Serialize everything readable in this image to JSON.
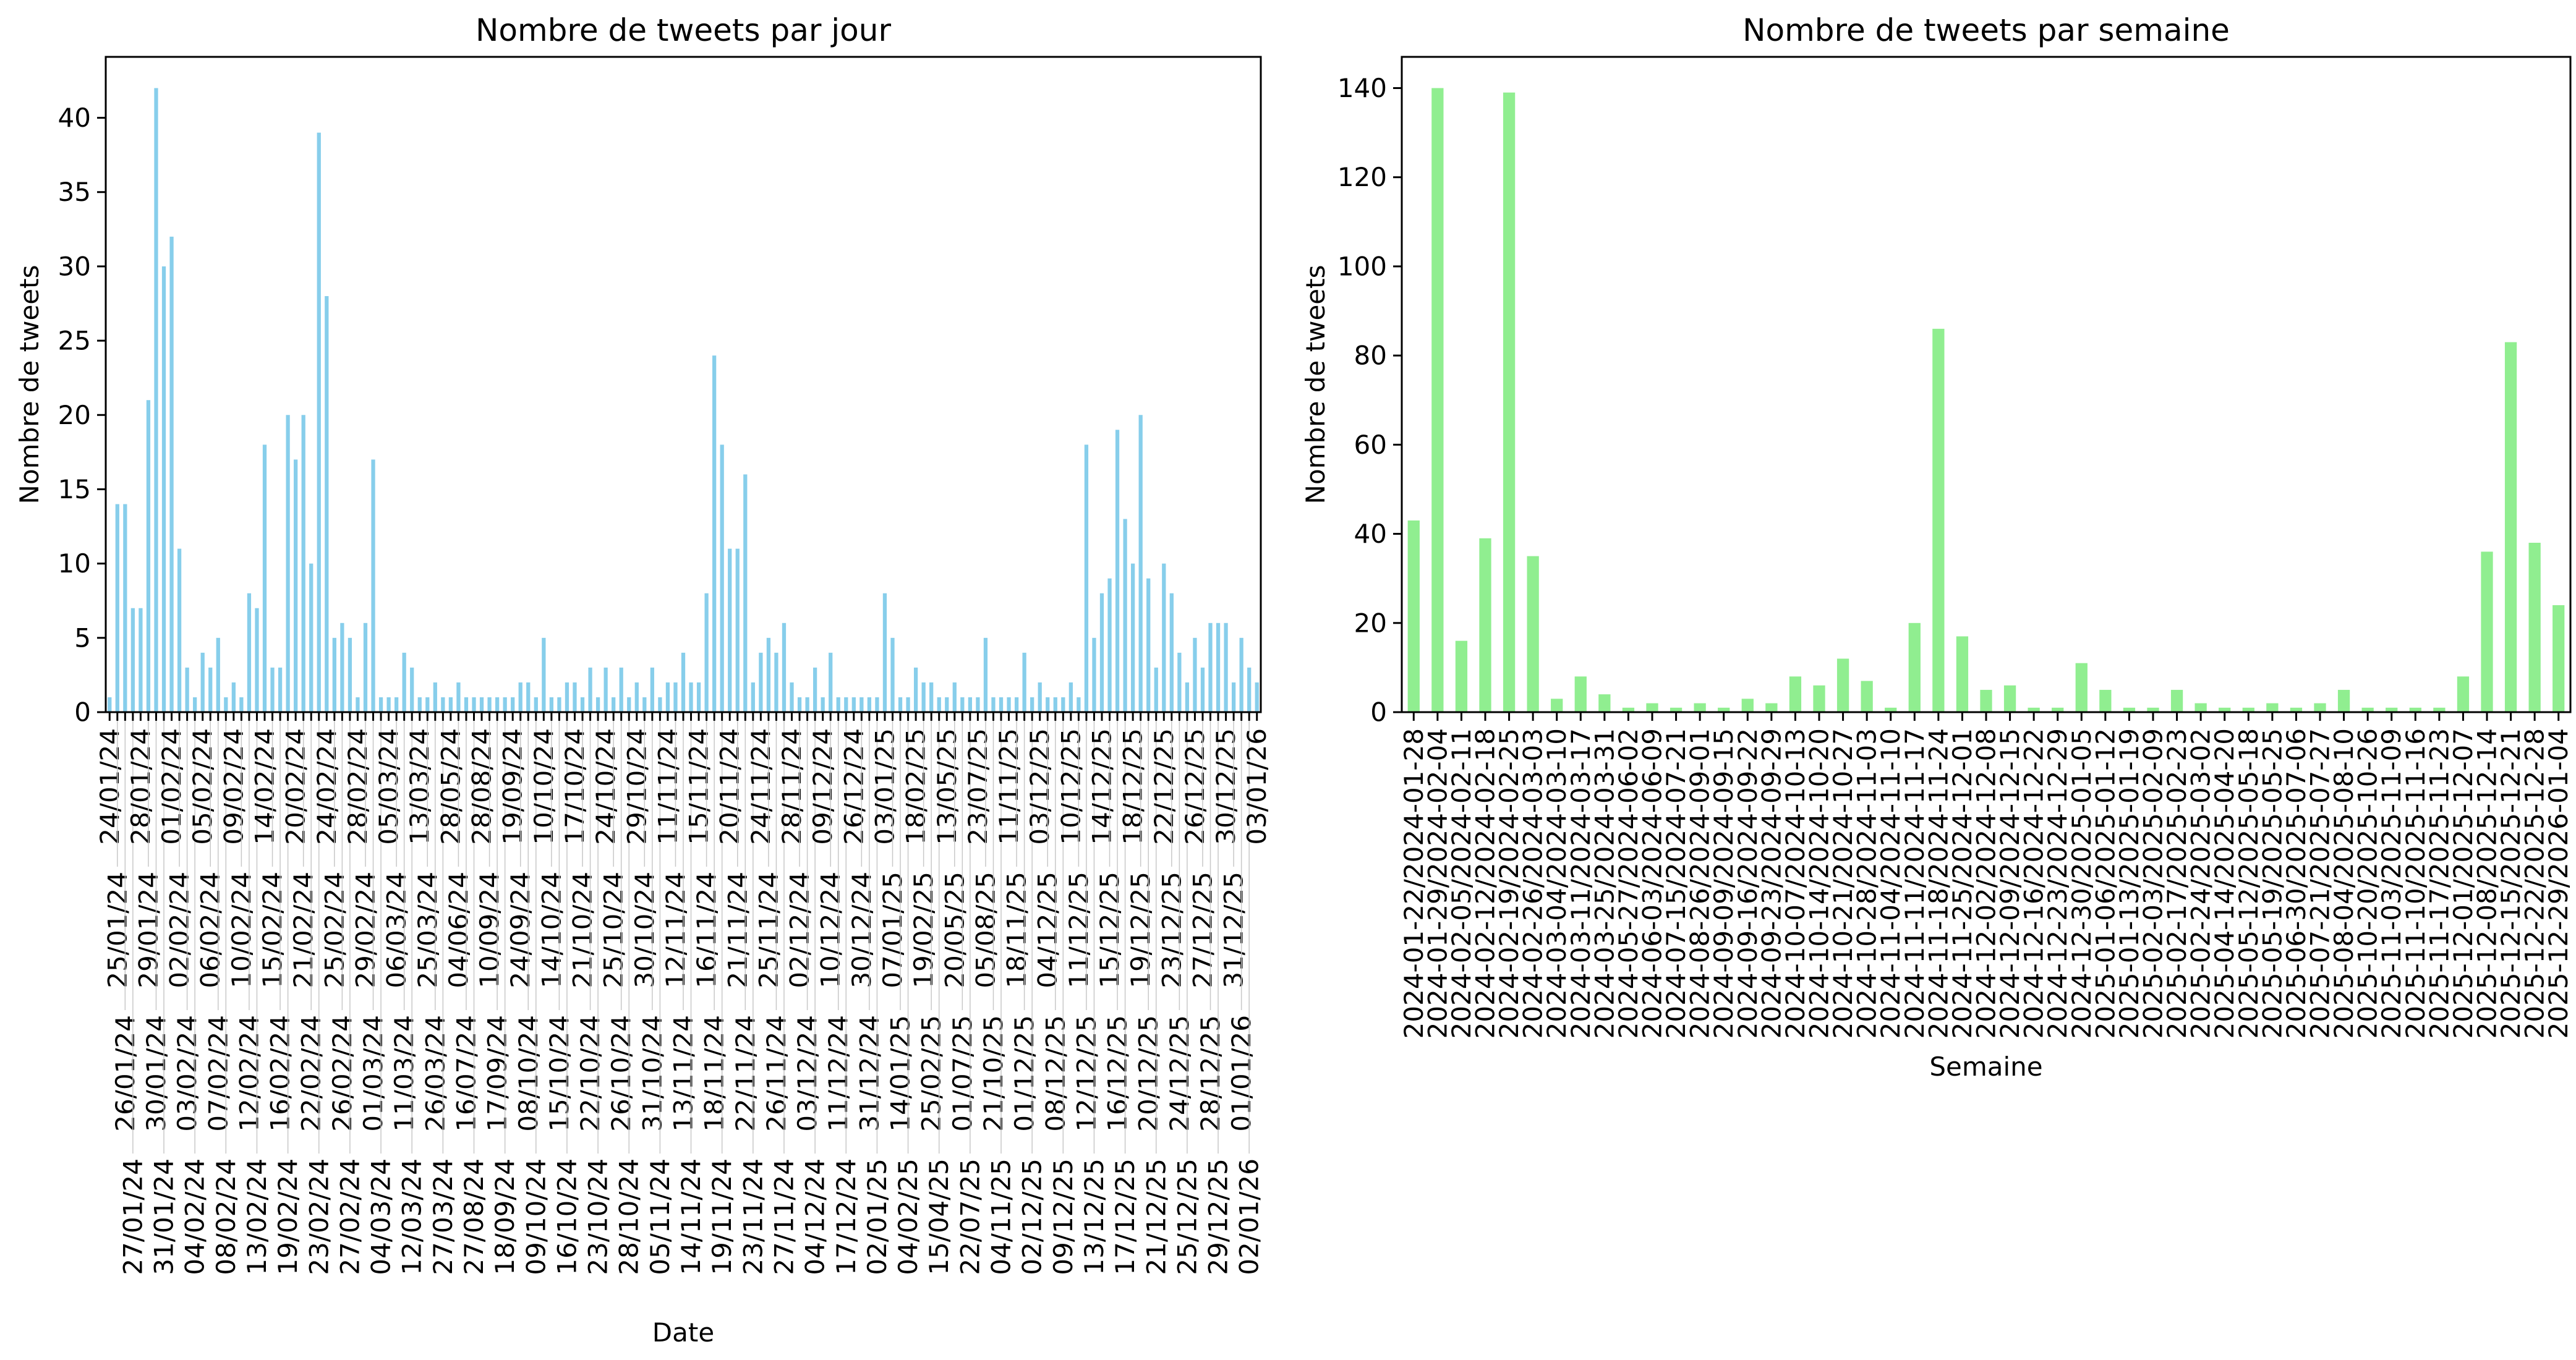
{
  "colors": {
    "daily_bar": "#87ceeb",
    "weekly_bar": "#90ee90",
    "axis": "#000000"
  },
  "chart_data": [
    {
      "type": "bar",
      "title": "Nombre de tweets par jour",
      "xlabel": "Date",
      "ylabel": "Nombre de tweets",
      "ylim": [
        0,
        44.1
      ],
      "yticks": [
        0,
        5,
        10,
        15,
        20,
        25,
        30,
        35,
        40
      ],
      "grid": false,
      "categories": [
        "24/01/24",
        "25/01/24",
        "26/01/24",
        "27/01/24",
        "28/01/24",
        "29/01/24",
        "30/01/24",
        "31/01/24",
        "01/02/24",
        "02/02/24",
        "03/02/24",
        "04/02/24",
        "05/02/24",
        "06/02/24",
        "07/02/24",
        "08/02/24",
        "09/02/24",
        "10/02/24",
        "12/02/24",
        "13/02/24",
        "14/02/24",
        "15/02/24",
        "16/02/24",
        "19/02/24",
        "20/02/24",
        "21/02/24",
        "22/02/24",
        "23/02/24",
        "24/02/24",
        "25/02/24",
        "26/02/24",
        "27/02/24",
        "28/02/24",
        "29/02/24",
        "01/03/24",
        "04/03/24",
        "05/03/24",
        "06/03/24",
        "11/03/24",
        "12/03/24",
        "13/03/24",
        "25/03/24",
        "26/03/24",
        "27/03/24",
        "28/05/24",
        "04/06/24",
        "16/07/24",
        "27/08/24",
        "28/08/24",
        "10/09/24",
        "17/09/24",
        "18/09/24",
        "19/09/24",
        "24/09/24",
        "08/10/24",
        "09/10/24",
        "10/10/24",
        "14/10/24",
        "15/10/24",
        "16/10/24",
        "17/10/24",
        "21/10/24",
        "22/10/24",
        "23/10/24",
        "24/10/24",
        "25/10/24",
        "26/10/24",
        "28/10/24",
        "29/10/24",
        "30/10/24",
        "31/10/24",
        "05/11/24",
        "11/11/24",
        "12/11/24",
        "13/11/24",
        "14/11/24",
        "15/11/24",
        "16/11/24",
        "18/11/24",
        "19/11/24",
        "20/11/24",
        "21/11/24",
        "22/11/24",
        "23/11/24",
        "24/11/24",
        "25/11/24",
        "26/11/24",
        "27/11/24",
        "28/11/24",
        "02/12/24",
        "03/12/24",
        "04/12/24",
        "09/12/24",
        "10/12/24",
        "11/12/24",
        "17/12/24",
        "26/12/24",
        "30/12/24",
        "31/12/24",
        "02/01/25",
        "03/01/25",
        "07/01/25",
        "14/01/25",
        "04/02/25",
        "18/02/25",
        "19/02/25",
        "25/02/25",
        "15/04/25",
        "13/05/25",
        "20/05/25",
        "01/07/25",
        "22/07/25",
        "23/07/25",
        "05/08/25",
        "21/10/25",
        "04/11/25",
        "11/11/25",
        "18/11/25",
        "01/12/25",
        "02/12/25",
        "03/12/25",
        "04/12/25",
        "08/12/25",
        "09/12/25",
        "10/12/25",
        "11/12/25",
        "12/12/25",
        "13/12/25",
        "14/12/25",
        "15/12/25",
        "16/12/25",
        "17/12/25",
        "18/12/25",
        "19/12/25",
        "20/12/25",
        "21/12/25",
        "22/12/25",
        "23/12/25",
        "24/12/25",
        "25/12/25",
        "26/12/25",
        "27/12/25",
        "28/12/25",
        "29/12/25",
        "30/12/25",
        "31/12/25",
        "01/01/26",
        "02/01/26",
        "03/01/26"
      ],
      "values": [
        1,
        14,
        14,
        7,
        7,
        21,
        42,
        30,
        32,
        11,
        3,
        1,
        4,
        3,
        5,
        1,
        2,
        1,
        8,
        7,
        18,
        3,
        3,
        20,
        17,
        20,
        10,
        39,
        28,
        5,
        6,
        5,
        1,
        6,
        17,
        1,
        1,
        1,
        4,
        3,
        1,
        1,
        2,
        1,
        1,
        2,
        1,
        1,
        1,
        1,
        1,
        1,
        1,
        2,
        2,
        1,
        5,
        1,
        1,
        2,
        2,
        1,
        3,
        1,
        3,
        1,
        3,
        1,
        2,
        1,
        3,
        1,
        2,
        2,
        4,
        2,
        2,
        8,
        24,
        18,
        11,
        11,
        16,
        2,
        4,
        5,
        4,
        6,
        2,
        1,
        1,
        3,
        1,
        4,
        1,
        1,
        1,
        1,
        1,
        1,
        8,
        5,
        1,
        1,
        3,
        2,
        2,
        1,
        1,
        2,
        1,
        1,
        1,
        5,
        1,
        1,
        1,
        1,
        4,
        1,
        2,
        1,
        1,
        1,
        2,
        1,
        18,
        5,
        8,
        9,
        19,
        13,
        10,
        20,
        9,
        3,
        10,
        8,
        4,
        2,
        5,
        3,
        6,
        6,
        6,
        2,
        5,
        3,
        2
      ]
    },
    {
      "type": "bar",
      "title": "Nombre de tweets par semaine",
      "xlabel": "Semaine",
      "ylabel": "Nombre de tweets",
      "ylim": [
        0,
        147
      ],
      "yticks": [
        0,
        20,
        40,
        60,
        80,
        100,
        120,
        140
      ],
      "grid": false,
      "categories": [
        "2024-01-22/2024-01-28",
        "2024-01-29/2024-02-04",
        "2024-02-05/2024-02-11",
        "2024-02-12/2024-02-18",
        "2024-02-19/2024-02-25",
        "2024-02-26/2024-03-03",
        "2024-03-04/2024-03-10",
        "2024-03-11/2024-03-17",
        "2024-03-25/2024-03-31",
        "2024-05-27/2024-06-02",
        "2024-06-03/2024-06-09",
        "2024-07-15/2024-07-21",
        "2024-08-26/2024-09-01",
        "2024-09-09/2024-09-15",
        "2024-09-16/2024-09-22",
        "2024-09-23/2024-09-29",
        "2024-10-07/2024-10-13",
        "2024-10-14/2024-10-20",
        "2024-10-21/2024-10-27",
        "2024-10-28/2024-11-03",
        "2024-11-04/2024-11-10",
        "2024-11-11/2024-11-17",
        "2024-11-18/2024-11-24",
        "2024-11-25/2024-12-01",
        "2024-12-02/2024-12-08",
        "2024-12-09/2024-12-15",
        "2024-12-16/2024-12-22",
        "2024-12-23/2024-12-29",
        "2024-12-30/2025-01-05",
        "2025-01-06/2025-01-12",
        "2025-01-13/2025-01-19",
        "2025-02-03/2025-02-09",
        "2025-02-17/2025-02-23",
        "2025-02-24/2025-03-02",
        "2025-04-14/2025-04-20",
        "2025-05-12/2025-05-18",
        "2025-05-19/2025-05-25",
        "2025-06-30/2025-07-06",
        "2025-07-21/2025-07-27",
        "2025-08-04/2025-08-10",
        "2025-10-20/2025-10-26",
        "2025-11-03/2025-11-09",
        "2025-11-10/2025-11-16",
        "2025-11-17/2025-11-23",
        "2025-12-01/2025-12-07",
        "2025-12-08/2025-12-14",
        "2025-12-15/2025-12-21",
        "2025-12-22/2025-12-28",
        "2025-12-29/2026-01-04"
      ],
      "values": [
        43,
        140,
        16,
        39,
        139,
        35,
        3,
        8,
        4,
        1,
        2,
        1,
        2,
        1,
        3,
        2,
        8,
        6,
        12,
        7,
        1,
        20,
        86,
        17,
        5,
        6,
        1,
        1,
        11,
        5,
        1,
        1,
        5,
        2,
        1,
        1,
        2,
        1,
        2,
        5,
        1,
        1,
        1,
        1,
        8,
        36,
        83,
        38,
        24
      ]
    }
  ]
}
